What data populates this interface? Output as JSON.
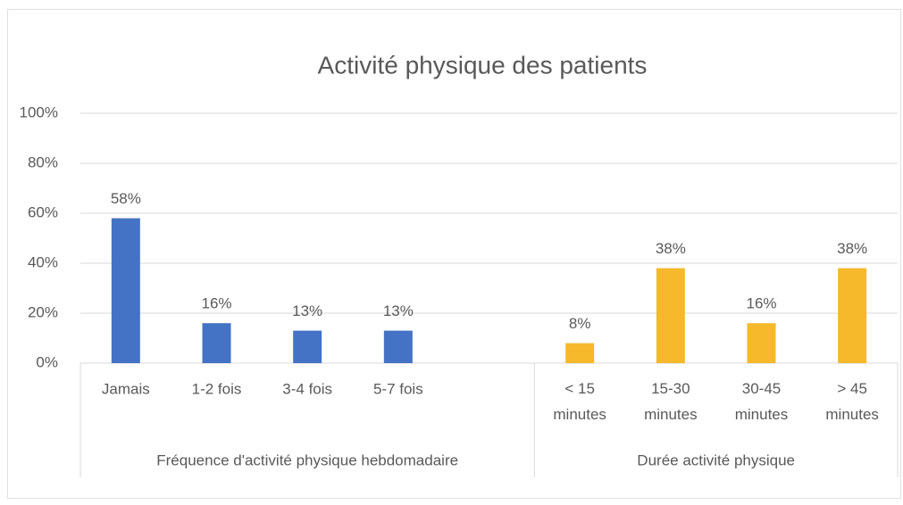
{
  "chart_data": {
    "type": "bar",
    "title": "Activité physique des patients",
    "categories": [
      "Jamais",
      "1-2 fois",
      "3-4 fois",
      "5-7 fois",
      null,
      "< 15 minutes",
      "15-30 minutes",
      "30-45 minutes",
      "> 45 minutes"
    ],
    "groups": [
      {
        "label": "Fréquence d'activité physique hebdomadaire",
        "count": 5
      },
      {
        "label": "Durée activité physique",
        "count": 4
      }
    ],
    "series": [
      {
        "color": "#4472c4",
        "values": [
          58,
          16,
          13,
          13,
          null,
          null,
          null,
          null,
          null
        ],
        "value_labels": [
          "58%",
          "16%",
          "13%",
          "13%",
          null,
          null,
          null,
          null,
          null
        ]
      },
      {
        "color": "#f6b92b",
        "values": [
          null,
          null,
          null,
          null,
          null,
          8,
          38,
          16,
          38
        ],
        "value_labels": [
          null,
          null,
          null,
          null,
          null,
          "8%",
          "38%",
          "16%",
          "38%"
        ]
      }
    ],
    "ylim": [
      0,
      100
    ],
    "yticks": [
      {
        "value": 0,
        "label": "0%"
      },
      {
        "value": 20,
        "label": "20%"
      },
      {
        "value": 40,
        "label": "40%"
      },
      {
        "value": 60,
        "label": "60%"
      },
      {
        "value": 80,
        "label": "80%"
      },
      {
        "value": 100,
        "label": "100%"
      }
    ],
    "grid": true
  }
}
